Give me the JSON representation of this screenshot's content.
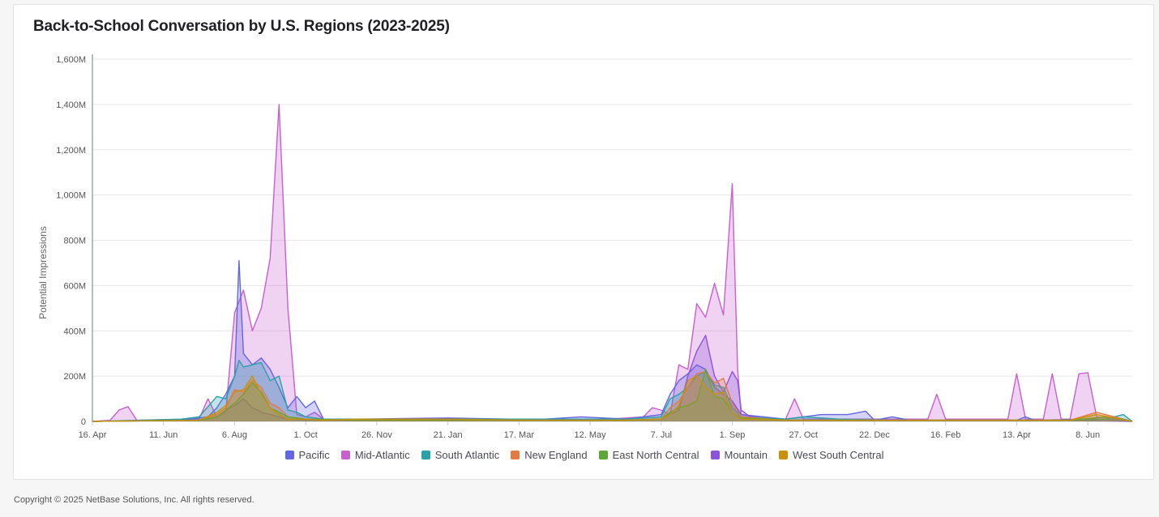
{
  "chart_data": {
    "type": "area",
    "title": "Back-to-School Conversation by U.S. Regions (2023-2025)",
    "ylabel": "Potential Impressions",
    "xlabel": "",
    "ylim": [
      0,
      1600000000
    ],
    "y_ticks": [
      "0",
      "200M",
      "400M",
      "600M",
      "800M",
      "1,000M",
      "1,200M",
      "1,400M",
      "1,600M"
    ],
    "y_tick_values": [
      0,
      200000000,
      400000000,
      600000000,
      800000000,
      1000000000,
      1200000000,
      1400000000,
      1600000000
    ],
    "x_ticks": [
      "16. Apr",
      "11. Jun",
      "6. Aug",
      "1. Oct",
      "26. Nov",
      "21. Jan",
      "17. Mar",
      "12. May",
      "7. Jul",
      "1. Sep",
      "27. Oct",
      "22. Dec",
      "16. Feb",
      "13. Apr",
      "8. Jun"
    ],
    "x_tick_weeks": [
      0,
      8,
      16,
      24,
      32,
      40,
      48,
      56,
      64,
      72,
      80,
      88,
      96,
      104,
      112
    ],
    "x_weeks_total": 117,
    "x_start_label": "16. Apr",
    "legend_position": "bottom-center",
    "grid": true,
    "series": [
      {
        "name": "Pacific",
        "color": "#6466e0",
        "points": [
          [
            0,
            0
          ],
          [
            10,
            5
          ],
          [
            13,
            20
          ],
          [
            14,
            60
          ],
          [
            15,
            120
          ],
          [
            16,
            200
          ],
          [
            16.5,
            710
          ],
          [
            17,
            300
          ],
          [
            18,
            250
          ],
          [
            19,
            280
          ],
          [
            20,
            230
          ],
          [
            21,
            150
          ],
          [
            22,
            60
          ],
          [
            23,
            110
          ],
          [
            24,
            60
          ],
          [
            25,
            90
          ],
          [
            26,
            10
          ],
          [
            30,
            10
          ],
          [
            40,
            15
          ],
          [
            50,
            8
          ],
          [
            55,
            20
          ],
          [
            60,
            10
          ],
          [
            64,
            30
          ],
          [
            65,
            120
          ],
          [
            66,
            180
          ],
          [
            67,
            210
          ],
          [
            68,
            250
          ],
          [
            69,
            230
          ],
          [
            70,
            150
          ],
          [
            71,
            120
          ],
          [
            72,
            90
          ],
          [
            73,
            30
          ],
          [
            78,
            10
          ],
          [
            80,
            20
          ],
          [
            82,
            30
          ],
          [
            85,
            30
          ],
          [
            87,
            45
          ],
          [
            88,
            5
          ],
          [
            90,
            20
          ],
          [
            92,
            5
          ],
          [
            100,
            5
          ],
          [
            104,
            5
          ],
          [
            105,
            20
          ],
          [
            106,
            5
          ],
          [
            112,
            10
          ],
          [
            114,
            10
          ],
          [
            116,
            5
          ],
          [
            117,
            0
          ]
        ]
      },
      {
        "name": "Mid-Atlantic",
        "color": "#c85fcf",
        "points": [
          [
            0,
            0
          ],
          [
            2,
            5
          ],
          [
            3,
            50
          ],
          [
            4,
            65
          ],
          [
            5,
            5
          ],
          [
            12,
            10
          ],
          [
            13,
            100
          ],
          [
            14,
            20
          ],
          [
            15,
            40
          ],
          [
            16,
            480
          ],
          [
            17,
            580
          ],
          [
            18,
            400
          ],
          [
            19,
            500
          ],
          [
            20,
            720
          ],
          [
            21,
            1400
          ],
          [
            22,
            500
          ],
          [
            23,
            30
          ],
          [
            24,
            20
          ],
          [
            25,
            40
          ],
          [
            26,
            10
          ],
          [
            30,
            10
          ],
          [
            40,
            10
          ],
          [
            50,
            10
          ],
          [
            58,
            10
          ],
          [
            62,
            20
          ],
          [
            63,
            60
          ],
          [
            64,
            50
          ],
          [
            65,
            30
          ],
          [
            66,
            250
          ],
          [
            67,
            230
          ],
          [
            68,
            520
          ],
          [
            69,
            460
          ],
          [
            70,
            610
          ],
          [
            71,
            470
          ],
          [
            72,
            1050
          ],
          [
            72.6,
            230
          ],
          [
            73,
            30
          ],
          [
            76,
            10
          ],
          [
            78,
            10
          ],
          [
            79,
            100
          ],
          [
            80,
            10
          ],
          [
            85,
            10
          ],
          [
            90,
            10
          ],
          [
            94,
            10
          ],
          [
            95,
            120
          ],
          [
            96,
            10
          ],
          [
            100,
            10
          ],
          [
            103,
            10
          ],
          [
            104,
            210
          ],
          [
            105,
            10
          ],
          [
            107,
            10
          ],
          [
            108,
            210
          ],
          [
            109,
            10
          ],
          [
            110,
            10
          ],
          [
            111,
            210
          ],
          [
            112,
            215
          ],
          [
            113,
            20
          ],
          [
            116,
            10
          ],
          [
            117,
            0
          ]
        ]
      },
      {
        "name": "South Atlantic",
        "color": "#2aa1a8",
        "points": [
          [
            0,
            0
          ],
          [
            10,
            10
          ],
          [
            12,
            20
          ],
          [
            14,
            110
          ],
          [
            15,
            100
          ],
          [
            16,
            200
          ],
          [
            16.5,
            270
          ],
          [
            17,
            240
          ],
          [
            18,
            250
          ],
          [
            19,
            260
          ],
          [
            20,
            180
          ],
          [
            21,
            200
          ],
          [
            22,
            50
          ],
          [
            23,
            40
          ],
          [
            24,
            20
          ],
          [
            26,
            10
          ],
          [
            30,
            10
          ],
          [
            40,
            10
          ],
          [
            50,
            10
          ],
          [
            60,
            10
          ],
          [
            64,
            20
          ],
          [
            65,
            100
          ],
          [
            66,
            120
          ],
          [
            67,
            150
          ],
          [
            68,
            200
          ],
          [
            69,
            220
          ],
          [
            70,
            160
          ],
          [
            71,
            150
          ],
          [
            72,
            60
          ],
          [
            73,
            20
          ],
          [
            78,
            10
          ],
          [
            80,
            20
          ],
          [
            84,
            10
          ],
          [
            90,
            5
          ],
          [
            100,
            5
          ],
          [
            110,
            5
          ],
          [
            114,
            10
          ],
          [
            116,
            30
          ],
          [
            117,
            0
          ]
        ]
      },
      {
        "name": "New England",
        "color": "#e07b43",
        "points": [
          [
            0,
            0
          ],
          [
            12,
            5
          ],
          [
            14,
            30
          ],
          [
            15,
            60
          ],
          [
            16,
            140
          ],
          [
            17,
            130
          ],
          [
            18,
            180
          ],
          [
            19,
            150
          ],
          [
            20,
            80
          ],
          [
            21,
            60
          ],
          [
            22,
            20
          ],
          [
            24,
            10
          ],
          [
            30,
            5
          ],
          [
            40,
            5
          ],
          [
            50,
            5
          ],
          [
            60,
            5
          ],
          [
            64,
            10
          ],
          [
            65,
            60
          ],
          [
            66,
            90
          ],
          [
            67,
            150
          ],
          [
            68,
            210
          ],
          [
            69,
            220
          ],
          [
            70,
            170
          ],
          [
            71,
            190
          ],
          [
            72,
            80
          ],
          [
            73,
            20
          ],
          [
            78,
            5
          ],
          [
            84,
            5
          ],
          [
            90,
            5
          ],
          [
            100,
            5
          ],
          [
            110,
            5
          ],
          [
            113,
            40
          ],
          [
            115,
            20
          ],
          [
            117,
            0
          ]
        ]
      },
      {
        "name": "East North Central",
        "color": "#5fa639",
        "points": [
          [
            0,
            0
          ],
          [
            12,
            5
          ],
          [
            14,
            20
          ],
          [
            15,
            50
          ],
          [
            16,
            80
          ],
          [
            17,
            120
          ],
          [
            18,
            170
          ],
          [
            19,
            130
          ],
          [
            20,
            60
          ],
          [
            21,
            40
          ],
          [
            22,
            20
          ],
          [
            24,
            10
          ],
          [
            30,
            5
          ],
          [
            40,
            5
          ],
          [
            50,
            5
          ],
          [
            60,
            5
          ],
          [
            64,
            10
          ],
          [
            65,
            40
          ],
          [
            66,
            60
          ],
          [
            67,
            70
          ],
          [
            68,
            90
          ],
          [
            69,
            230
          ],
          [
            70,
            110
          ],
          [
            71,
            100
          ],
          [
            72,
            40
          ],
          [
            73,
            15
          ],
          [
            78,
            5
          ],
          [
            84,
            5
          ],
          [
            90,
            5
          ],
          [
            100,
            5
          ],
          [
            110,
            5
          ],
          [
            114,
            20
          ],
          [
            116,
            10
          ],
          [
            117,
            0
          ]
        ]
      },
      {
        "name": "Mountain",
        "color": "#8d53db",
        "points": [
          [
            0,
            0
          ],
          [
            12,
            5
          ],
          [
            14,
            20
          ],
          [
            15,
            50
          ],
          [
            16,
            70
          ],
          [
            17,
            100
          ],
          [
            18,
            60
          ],
          [
            19,
            40
          ],
          [
            20,
            30
          ],
          [
            21,
            20
          ],
          [
            22,
            10
          ],
          [
            24,
            5
          ],
          [
            30,
            5
          ],
          [
            40,
            5
          ],
          [
            50,
            5
          ],
          [
            60,
            5
          ],
          [
            64,
            10
          ],
          [
            65,
            30
          ],
          [
            66,
            50
          ],
          [
            67,
            200
          ],
          [
            68,
            310
          ],
          [
            69,
            380
          ],
          [
            70,
            200
          ],
          [
            71,
            130
          ],
          [
            72,
            220
          ],
          [
            72.6,
            180
          ],
          [
            73,
            50
          ],
          [
            74,
            20
          ],
          [
            78,
            5
          ],
          [
            84,
            5
          ],
          [
            90,
            5
          ],
          [
            100,
            5
          ],
          [
            110,
            5
          ],
          [
            117,
            0
          ]
        ]
      },
      {
        "name": "West South Central",
        "color": "#c9900b",
        "points": [
          [
            0,
            0
          ],
          [
            12,
            5
          ],
          [
            14,
            40
          ],
          [
            15,
            70
          ],
          [
            16,
            130
          ],
          [
            17,
            140
          ],
          [
            18,
            200
          ],
          [
            19,
            120
          ],
          [
            20,
            60
          ],
          [
            21,
            30
          ],
          [
            22,
            10
          ],
          [
            24,
            10
          ],
          [
            26,
            5
          ],
          [
            30,
            10
          ],
          [
            40,
            10
          ],
          [
            50,
            5
          ],
          [
            60,
            5
          ],
          [
            64,
            10
          ],
          [
            65,
            30
          ],
          [
            66,
            70
          ],
          [
            67,
            180
          ],
          [
            68,
            200
          ],
          [
            69,
            150
          ],
          [
            70,
            120
          ],
          [
            71,
            130
          ],
          [
            72,
            40
          ],
          [
            73,
            10
          ],
          [
            78,
            5
          ],
          [
            84,
            5
          ],
          [
            90,
            5
          ],
          [
            100,
            5
          ],
          [
            110,
            5
          ],
          [
            113,
            30
          ],
          [
            115,
            15
          ],
          [
            117,
            0
          ]
        ]
      }
    ]
  },
  "footer": {
    "copyright": "Copyright © 2025 NetBase Solutions, Inc. All rights reserved."
  }
}
